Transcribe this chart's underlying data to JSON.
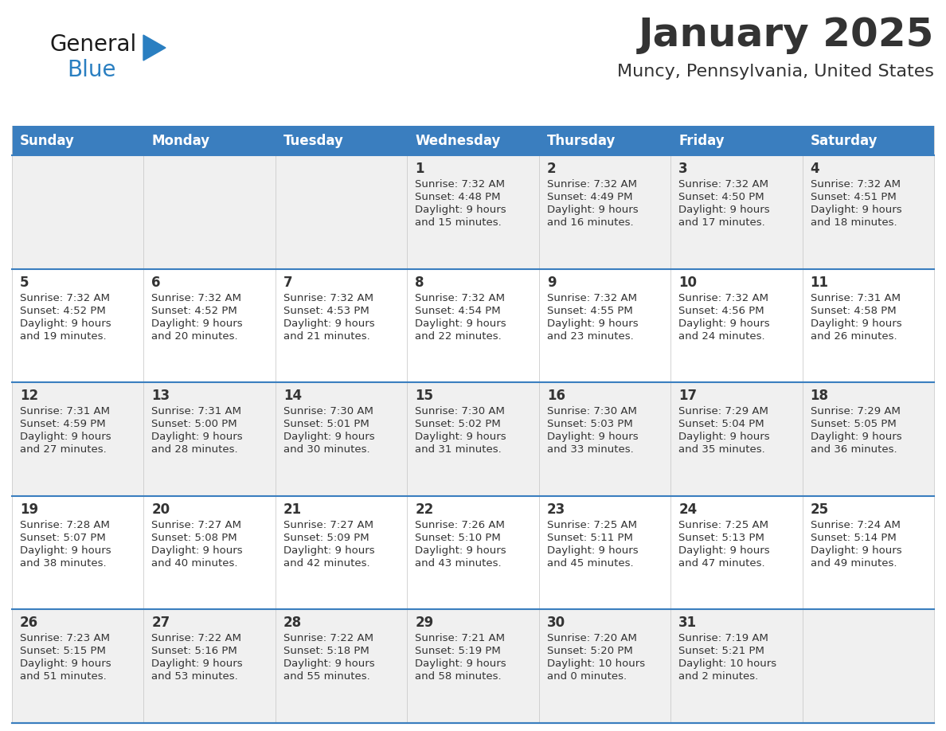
{
  "title": "January 2025",
  "subtitle": "Muncy, Pennsylvania, United States",
  "header_bg": "#3a7ebf",
  "header_text_color": "#ffffff",
  "days_of_week": [
    "Sunday",
    "Monday",
    "Tuesday",
    "Wednesday",
    "Thursday",
    "Friday",
    "Saturday"
  ],
  "row_bg_odd": "#f0f0f0",
  "row_bg_even": "#ffffff",
  "cell_text_color": "#333333",
  "day_num_color": "#333333",
  "divider_color": "#3a7ebf",
  "logo_general_color": "#1a1a1a",
  "logo_blue_color": "#2a7fc1",
  "weeks": [
    [
      {
        "day": null
      },
      {
        "day": null
      },
      {
        "day": null
      },
      {
        "day": 1,
        "sunrise": "7:32 AM",
        "sunset": "4:48 PM",
        "daylight": "9 hours",
        "daylight2": "and 15 minutes."
      },
      {
        "day": 2,
        "sunrise": "7:32 AM",
        "sunset": "4:49 PM",
        "daylight": "9 hours",
        "daylight2": "and 16 minutes."
      },
      {
        "day": 3,
        "sunrise": "7:32 AM",
        "sunset": "4:50 PM",
        "daylight": "9 hours",
        "daylight2": "and 17 minutes."
      },
      {
        "day": 4,
        "sunrise": "7:32 AM",
        "sunset": "4:51 PM",
        "daylight": "9 hours",
        "daylight2": "and 18 minutes."
      }
    ],
    [
      {
        "day": 5,
        "sunrise": "7:32 AM",
        "sunset": "4:52 PM",
        "daylight": "9 hours",
        "daylight2": "and 19 minutes."
      },
      {
        "day": 6,
        "sunrise": "7:32 AM",
        "sunset": "4:52 PM",
        "daylight": "9 hours",
        "daylight2": "and 20 minutes."
      },
      {
        "day": 7,
        "sunrise": "7:32 AM",
        "sunset": "4:53 PM",
        "daylight": "9 hours",
        "daylight2": "and 21 minutes."
      },
      {
        "day": 8,
        "sunrise": "7:32 AM",
        "sunset": "4:54 PM",
        "daylight": "9 hours",
        "daylight2": "and 22 minutes."
      },
      {
        "day": 9,
        "sunrise": "7:32 AM",
        "sunset": "4:55 PM",
        "daylight": "9 hours",
        "daylight2": "and 23 minutes."
      },
      {
        "day": 10,
        "sunrise": "7:32 AM",
        "sunset": "4:56 PM",
        "daylight": "9 hours",
        "daylight2": "and 24 minutes."
      },
      {
        "day": 11,
        "sunrise": "7:31 AM",
        "sunset": "4:58 PM",
        "daylight": "9 hours",
        "daylight2": "and 26 minutes."
      }
    ],
    [
      {
        "day": 12,
        "sunrise": "7:31 AM",
        "sunset": "4:59 PM",
        "daylight": "9 hours",
        "daylight2": "and 27 minutes."
      },
      {
        "day": 13,
        "sunrise": "7:31 AM",
        "sunset": "5:00 PM",
        "daylight": "9 hours",
        "daylight2": "and 28 minutes."
      },
      {
        "day": 14,
        "sunrise": "7:30 AM",
        "sunset": "5:01 PM",
        "daylight": "9 hours",
        "daylight2": "and 30 minutes."
      },
      {
        "day": 15,
        "sunrise": "7:30 AM",
        "sunset": "5:02 PM",
        "daylight": "9 hours",
        "daylight2": "and 31 minutes."
      },
      {
        "day": 16,
        "sunrise": "7:30 AM",
        "sunset": "5:03 PM",
        "daylight": "9 hours",
        "daylight2": "and 33 minutes."
      },
      {
        "day": 17,
        "sunrise": "7:29 AM",
        "sunset": "5:04 PM",
        "daylight": "9 hours",
        "daylight2": "and 35 minutes."
      },
      {
        "day": 18,
        "sunrise": "7:29 AM",
        "sunset": "5:05 PM",
        "daylight": "9 hours",
        "daylight2": "and 36 minutes."
      }
    ],
    [
      {
        "day": 19,
        "sunrise": "7:28 AM",
        "sunset": "5:07 PM",
        "daylight": "9 hours",
        "daylight2": "and 38 minutes."
      },
      {
        "day": 20,
        "sunrise": "7:27 AM",
        "sunset": "5:08 PM",
        "daylight": "9 hours",
        "daylight2": "and 40 minutes."
      },
      {
        "day": 21,
        "sunrise": "7:27 AM",
        "sunset": "5:09 PM",
        "daylight": "9 hours",
        "daylight2": "and 42 minutes."
      },
      {
        "day": 22,
        "sunrise": "7:26 AM",
        "sunset": "5:10 PM",
        "daylight": "9 hours",
        "daylight2": "and 43 minutes."
      },
      {
        "day": 23,
        "sunrise": "7:25 AM",
        "sunset": "5:11 PM",
        "daylight": "9 hours",
        "daylight2": "and 45 minutes."
      },
      {
        "day": 24,
        "sunrise": "7:25 AM",
        "sunset": "5:13 PM",
        "daylight": "9 hours",
        "daylight2": "and 47 minutes."
      },
      {
        "day": 25,
        "sunrise": "7:24 AM",
        "sunset": "5:14 PM",
        "daylight": "9 hours",
        "daylight2": "and 49 minutes."
      }
    ],
    [
      {
        "day": 26,
        "sunrise": "7:23 AM",
        "sunset": "5:15 PM",
        "daylight": "9 hours",
        "daylight2": "and 51 minutes."
      },
      {
        "day": 27,
        "sunrise": "7:22 AM",
        "sunset": "5:16 PM",
        "daylight": "9 hours",
        "daylight2": "and 53 minutes."
      },
      {
        "day": 28,
        "sunrise": "7:22 AM",
        "sunset": "5:18 PM",
        "daylight": "9 hours",
        "daylight2": "and 55 minutes."
      },
      {
        "day": 29,
        "sunrise": "7:21 AM",
        "sunset": "5:19 PM",
        "daylight": "9 hours",
        "daylight2": "and 58 minutes."
      },
      {
        "day": 30,
        "sunrise": "7:20 AM",
        "sunset": "5:20 PM",
        "daylight": "10 hours",
        "daylight2": "and 0 minutes."
      },
      {
        "day": 31,
        "sunrise": "7:19 AM",
        "sunset": "5:21 PM",
        "daylight": "10 hours",
        "daylight2": "and 2 minutes."
      },
      {
        "day": null
      }
    ]
  ]
}
